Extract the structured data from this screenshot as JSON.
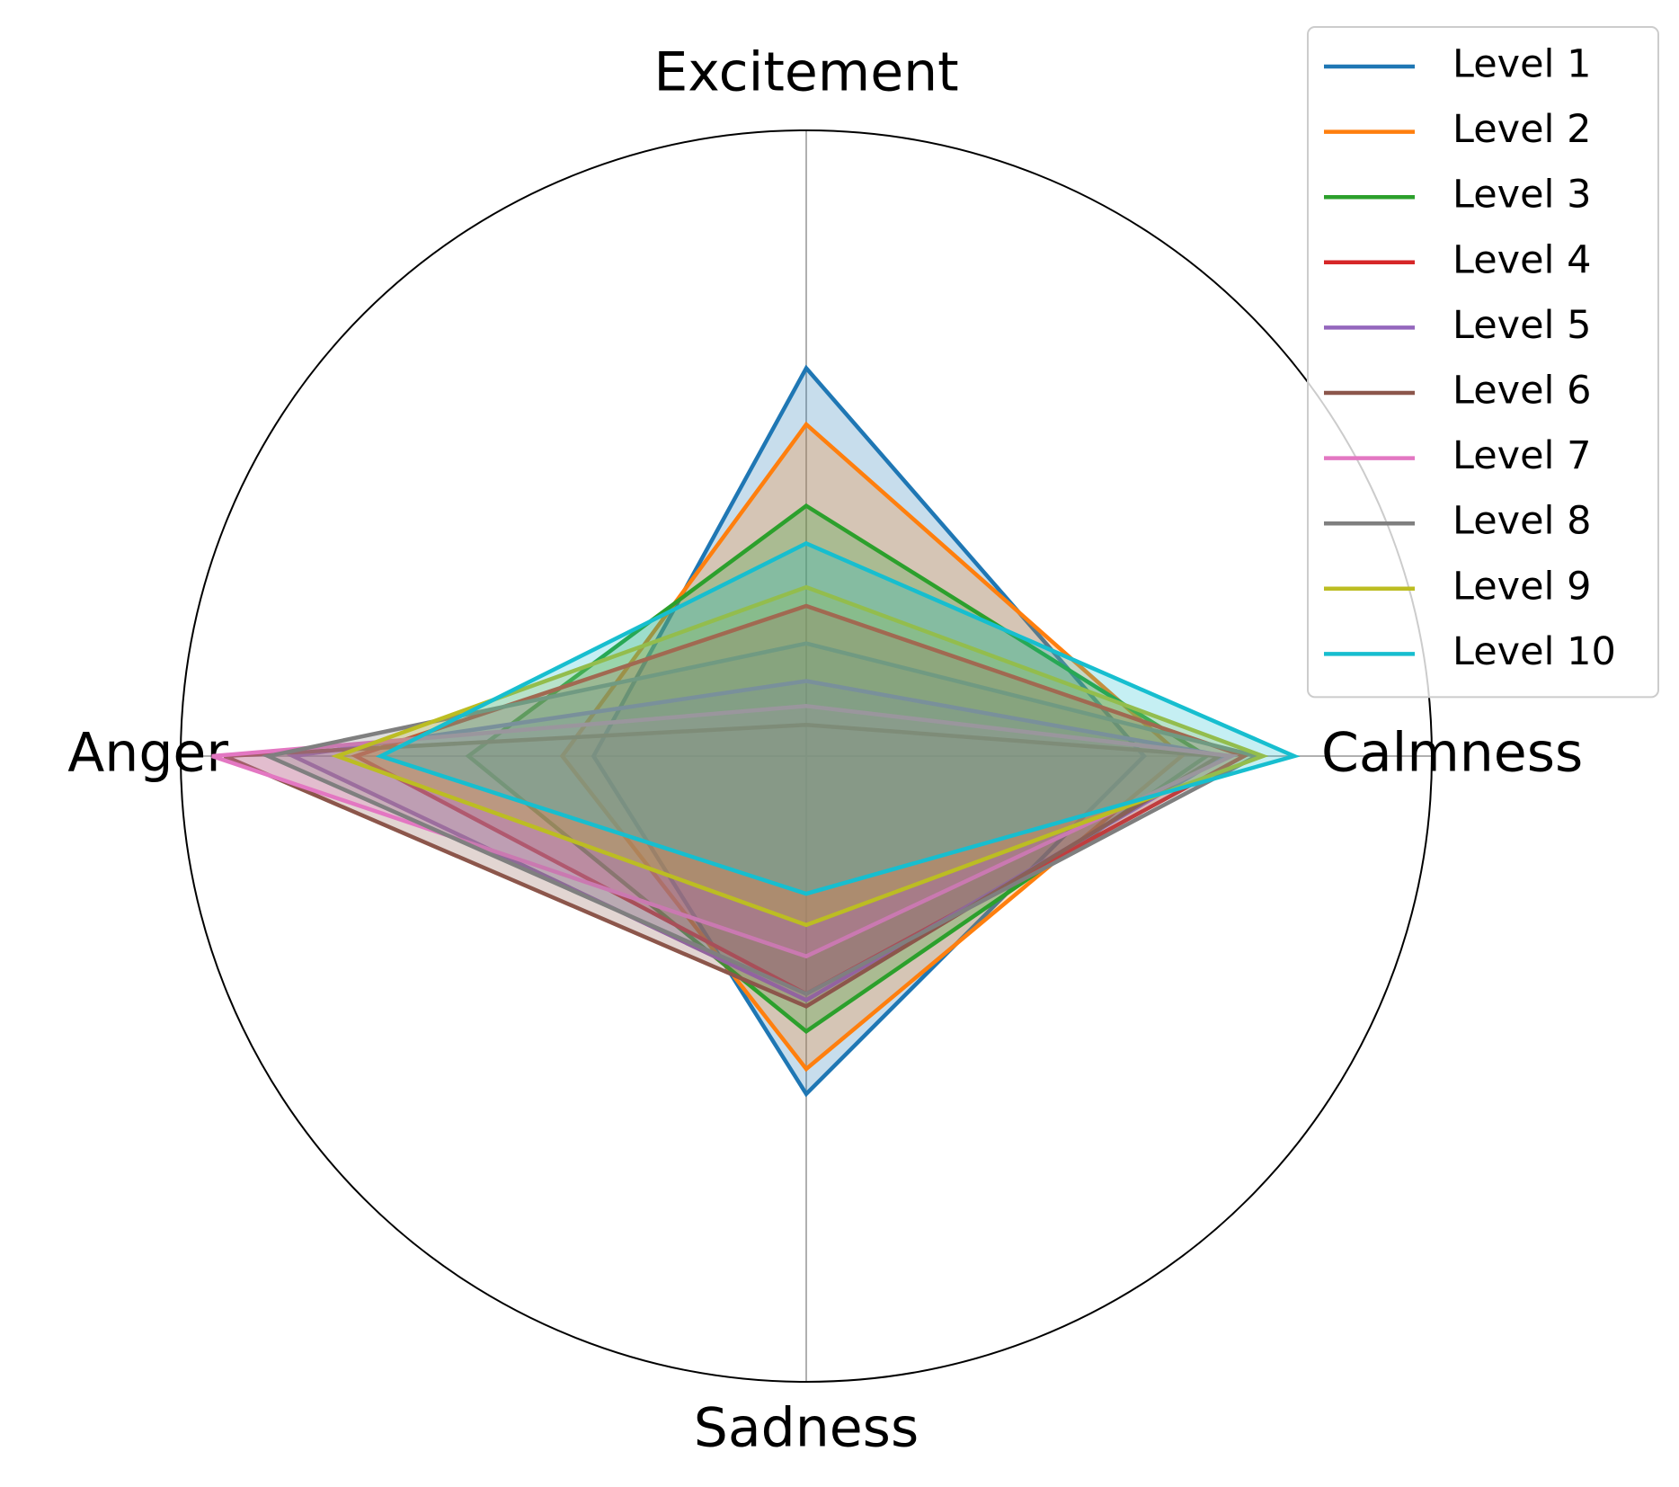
{
  "chart_data": {
    "type": "radar",
    "categories": [
      "Excitement",
      "Calmness",
      "Sadness",
      "Anger"
    ],
    "rlim": [
      0,
      1
    ],
    "fill_alpha": 0.25,
    "legend": "upper right",
    "series": [
      {
        "name": "Level 1",
        "color": "#1f77b4",
        "values": [
          0.62,
          0.54,
          0.54,
          0.34
        ]
      },
      {
        "name": "Level 2",
        "color": "#ff7f0e",
        "values": [
          0.53,
          0.6,
          0.5,
          0.39
        ]
      },
      {
        "name": "Level 3",
        "color": "#2ca02c",
        "values": [
          0.4,
          0.64,
          0.44,
          0.54
        ]
      },
      {
        "name": "Level 4",
        "color": "#d62728",
        "values": [
          0.24,
          0.7,
          0.38,
          0.72
        ]
      },
      {
        "name": "Level 5",
        "color": "#9467bd",
        "values": [
          0.12,
          0.67,
          0.39,
          0.82
        ]
      },
      {
        "name": "Level 6",
        "color": "#8c564b",
        "values": [
          0.05,
          0.66,
          0.4,
          0.93
        ]
      },
      {
        "name": "Level 7",
        "color": "#e377c2",
        "values": [
          0.08,
          0.68,
          0.32,
          0.95
        ]
      },
      {
        "name": "Level 8",
        "color": "#7f7f7f",
        "values": [
          0.18,
          0.72,
          0.38,
          0.86
        ]
      },
      {
        "name": "Level 9",
        "color": "#bcbd22",
        "values": [
          0.27,
          0.73,
          0.27,
          0.75
        ]
      },
      {
        "name": "Level 10",
        "color": "#17becf",
        "values": [
          0.34,
          0.78,
          0.22,
          0.68
        ]
      }
    ]
  }
}
